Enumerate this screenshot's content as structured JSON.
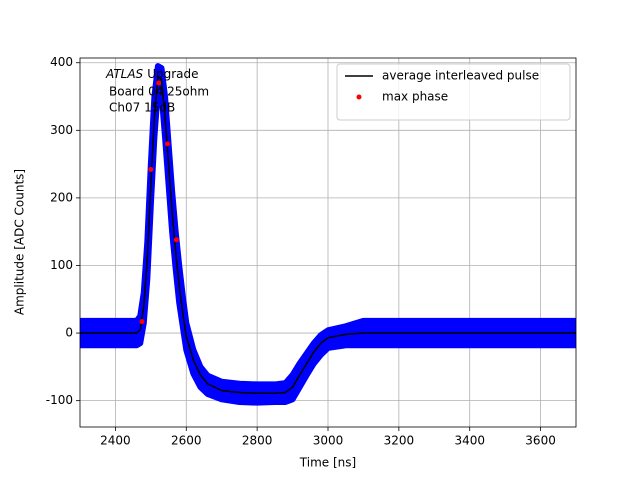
{
  "chart_data": {
    "type": "line",
    "xlabel": "Time [ns]",
    "ylabel": "Amplitude [ADC Counts]",
    "annotation": {
      "italic": "ATLAS",
      "lines": [
        "Upgrade",
        "Board 04 25ohm",
        "Ch07 15dB"
      ]
    },
    "xlim": [
      2300,
      3700
    ],
    "ylim": [
      -139,
      407
    ],
    "xticks": [
      2400,
      2600,
      2800,
      3000,
      3200,
      3400,
      3600
    ],
    "yticks": [
      -100,
      0,
      100,
      200,
      300,
      400
    ],
    "grid": true,
    "legend": "upper right",
    "series": [
      {
        "style": "band",
        "color": "#0000ff",
        "x": [
          2300,
          2460,
          2470,
          2480,
          2490,
          2500,
          2510,
          2520,
          2530,
          2540,
          2550,
          2560,
          2570,
          2580,
          2590,
          2600,
          2620,
          2640,
          2660,
          2700,
          2750,
          2800,
          2850,
          2880,
          2900,
          2920,
          2940,
          2960,
          2980,
          3000,
          3050,
          3100,
          3700
        ],
        "high": [
          18,
          18,
          25,
          60,
          135,
          250,
          350,
          395,
          392,
          350,
          280,
          210,
          150,
          100,
          55,
          15,
          -25,
          -50,
          -63,
          -72,
          -75,
          -76,
          -76,
          -74,
          -62,
          -45,
          -30,
          -15,
          -3,
          4,
          10,
          18,
          18
        ],
        "low": [
          -18,
          -18,
          -15,
          15,
          80,
          190,
          290,
          360,
          355,
          290,
          220,
          150,
          95,
          45,
          10,
          -25,
          -60,
          -80,
          -90,
          -98,
          -102,
          -103,
          -102,
          -102,
          -98,
          -80,
          -62,
          -45,
          -32,
          -22,
          -18,
          -18,
          -18
        ]
      },
      {
        "style": "line",
        "name": "average interleaved pulse",
        "color": "#000000",
        "x": [
          2300,
          2460,
          2470,
          2480,
          2490,
          2500,
          2510,
          2520,
          2530,
          2540,
          2550,
          2560,
          2570,
          2580,
          2590,
          2600,
          2620,
          2640,
          2660,
          2700,
          2750,
          2800,
          2850,
          2880,
          2900,
          2920,
          2940,
          2960,
          2980,
          3000,
          3050,
          3100,
          3700
        ],
        "values": [
          0,
          0,
          5,
          40,
          110,
          220,
          320,
          380,
          375,
          320,
          250,
          180,
          120,
          70,
          30,
          -5,
          -40,
          -62,
          -75,
          -85,
          -88,
          -89,
          -89,
          -88,
          -80,
          -62,
          -45,
          -28,
          -15,
          -7,
          -2,
          0,
          0
        ]
      },
      {
        "style": "points",
        "name": "max phase",
        "color": "#ff0000",
        "x": [
          2475,
          2500,
          2522,
          2547,
          2572
        ],
        "values": [
          17,
          242,
          370,
          280,
          138
        ]
      }
    ]
  }
}
